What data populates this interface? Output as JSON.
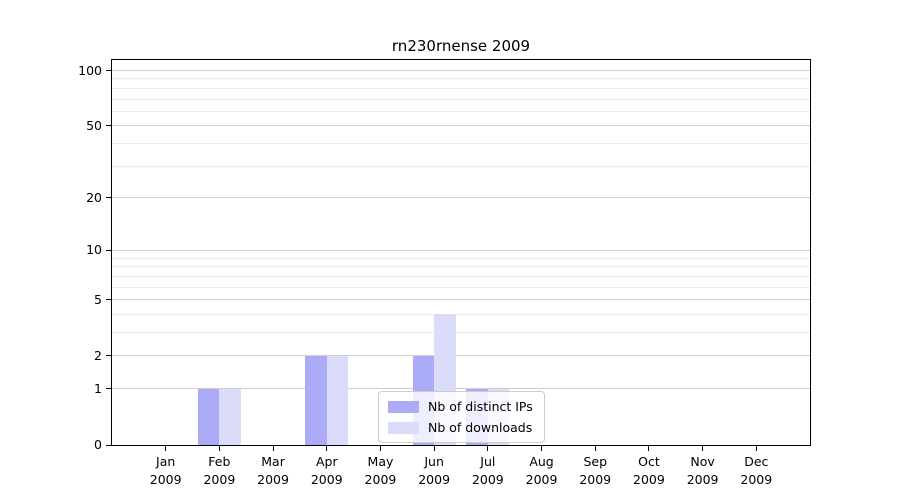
{
  "title": "rn230rnense 2009",
  "colors": {
    "background": "#ffffff",
    "axis": "#000000",
    "grid_major": "#cfcfcf",
    "grid_minor": "#ebebeb",
    "bar_distinct_ips": "#acabf8",
    "bar_downloads": "#dbdbfa",
    "legend_border": "#cccccc"
  },
  "legend": {
    "entries": [
      {
        "label": "Nb of distinct IPs"
      },
      {
        "label": "Nb of downloads"
      }
    ]
  },
  "chart_data": {
    "type": "bar",
    "title": "rn230rnense 2009",
    "categories": [
      "Jan 2009",
      "Feb 2009",
      "Mar 2009",
      "Apr 2009",
      "May 2009",
      "Jun 2009",
      "Jul 2009",
      "Aug 2009",
      "Sep 2009",
      "Oct 2009",
      "Nov 2009",
      "Dec 2009"
    ],
    "series": [
      {
        "name": "Nb of distinct IPs",
        "color": "#acabf8",
        "values": [
          0,
          1,
          0,
          2,
          0,
          2,
          1,
          0,
          0,
          0,
          0,
          0
        ]
      },
      {
        "name": "Nb of downloads",
        "color": "#dbdbfa",
        "values": [
          0,
          1,
          0,
          2,
          0,
          4,
          1,
          0,
          0,
          0,
          0,
          0
        ]
      }
    ],
    "xlabel": "",
    "ylabel": "",
    "y_axis": {
      "scale": "log10(value+1)",
      "major_ticks": [
        0,
        1,
        2,
        5,
        10,
        20,
        50,
        100
      ],
      "minor_grid_values": [
        3,
        4,
        6,
        7,
        8,
        9,
        30,
        40,
        60,
        70,
        80,
        90
      ],
      "ylim": [
        0,
        114
      ]
    },
    "grid": "horizontal, major and minor",
    "legend_position": "inside lower center"
  }
}
